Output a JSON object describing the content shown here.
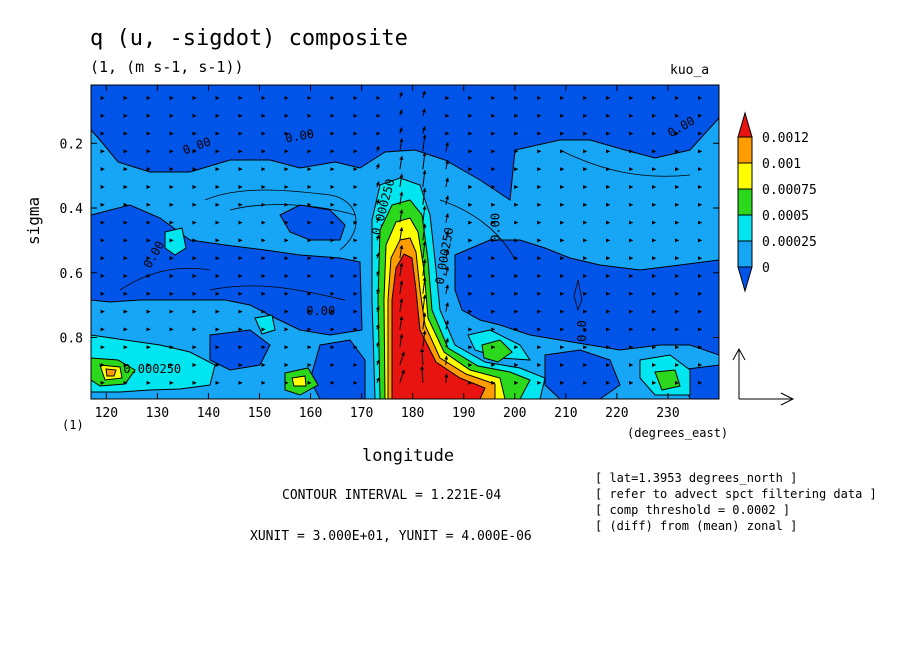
{
  "chart_data": {
    "type": "heatmap",
    "title": "q (u, -sigdot) composite",
    "subtitle": "(1, (m s-1, s-1))",
    "run_label": "kuo_a",
    "xlabel": "longitude",
    "x_units_label": "(degrees_east)",
    "ylabel": "sigma",
    "dimension_label": "(1)",
    "xlim": [
      117,
      240
    ],
    "ylim_inverted": [
      0.02,
      0.99
    ],
    "x_ticks": [
      "120",
      "130",
      "140",
      "150",
      "160",
      "170",
      "180",
      "190",
      "200",
      "210",
      "220",
      "230"
    ],
    "y_ticks": [
      "0.2",
      "0.4",
      "0.6",
      "0.8"
    ],
    "colorbar": {
      "levels": [
        "0.0012",
        "0.001",
        "0.00075",
        "0.0005",
        "0.00025",
        "0"
      ],
      "colors": [
        "#0055e8",
        "#16a6f5",
        "#00e6f0",
        "#2bd81c",
        "#ffff00",
        "#ff9c00",
        "#e8140f"
      ],
      "extends": "both"
    },
    "contour_labels": [
      {
        "text": "0.00",
        "x": 130,
        "y": 0.55
      },
      {
        "text": "0.00",
        "x": 138,
        "y": 0.22
      },
      {
        "text": "0.00",
        "x": 158,
        "y": 0.19
      },
      {
        "text": "0.00",
        "x": 162,
        "y": 0.73
      },
      {
        "text": "0.000250",
        "x": 175,
        "y": 0.4
      },
      {
        "text": "0.000250",
        "x": 187,
        "y": 0.55
      },
      {
        "text": "0.00",
        "x": 197,
        "y": 0.46
      },
      {
        "text": "0.00",
        "x": 233,
        "y": 0.16
      },
      {
        "text": "0.0",
        "x": 214,
        "y": 0.78
      },
      {
        "text": "0.000250",
        "x": 129,
        "y": 0.91
      }
    ],
    "vector_reference": {
      "xunit": "3.000E+01",
      "yunit": "4.000E-06"
    },
    "contour_interval_text": "CONTOUR INTERVAL = 1.221E-04",
    "vector_units_text": "XUNIT = 3.000E+01, YUNIT = 4.000E-06"
  },
  "notes": [
    "[ lat=1.3953 degrees_north ]",
    "[ refer to advect spct filtering data ]",
    "[ comp threshold = 0.0002 ]",
    "[ (diff) from (mean) zonal ]"
  ]
}
